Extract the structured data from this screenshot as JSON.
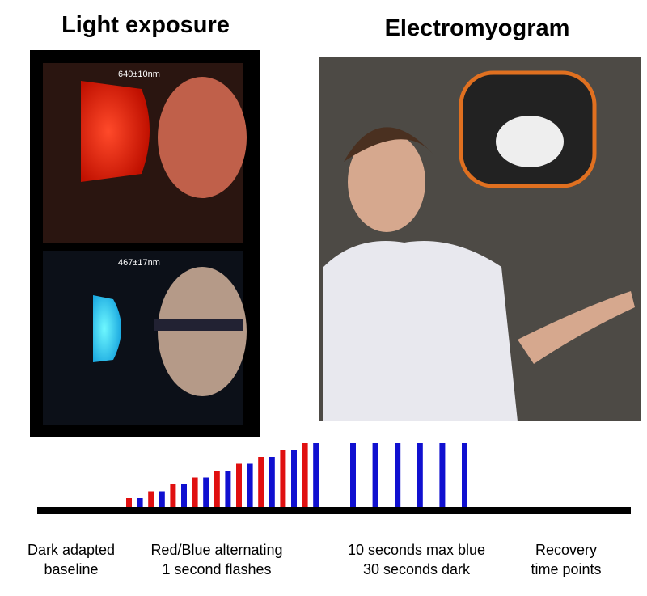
{
  "titles": [
    "Light exposure",
    "Electromyogram"
  ],
  "wavelengths": [
    "640±10nm",
    "467±17nm"
  ],
  "phases": [
    [
      "Dark adapted",
      "baseline"
    ],
    [
      "Red/Blue alternating",
      "1 second flashes"
    ],
    [
      "10 seconds max blue",
      "30 seconds dark"
    ],
    [
      "Recovery",
      "time points"
    ]
  ]
}
